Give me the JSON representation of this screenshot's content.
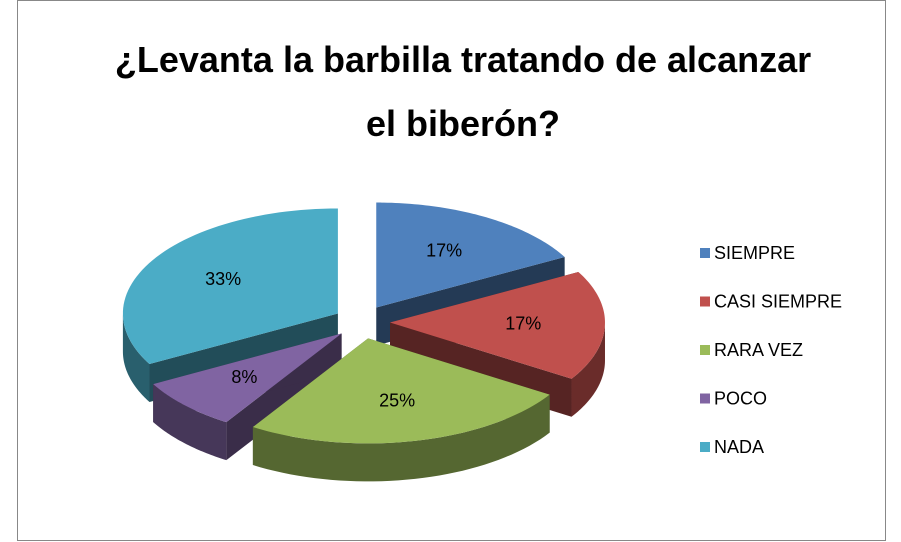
{
  "chart_data": {
    "type": "pie3d",
    "title": "¿Levanta la barbilla tratando de alcanzar el biberón?",
    "categories": [
      "SIEMPRE",
      "CASI SIEMPRE",
      "RARA VEZ",
      "POCO",
      "NADA"
    ],
    "values": [
      17,
      17,
      25,
      8,
      33
    ],
    "value_labels": [
      "17%",
      "17%",
      "25%",
      "8%",
      "33%"
    ],
    "colors": [
      "#4f81bd",
      "#c0504d",
      "#9bbb59",
      "#8064a2",
      "#4bacc6"
    ],
    "legend": "right"
  }
}
